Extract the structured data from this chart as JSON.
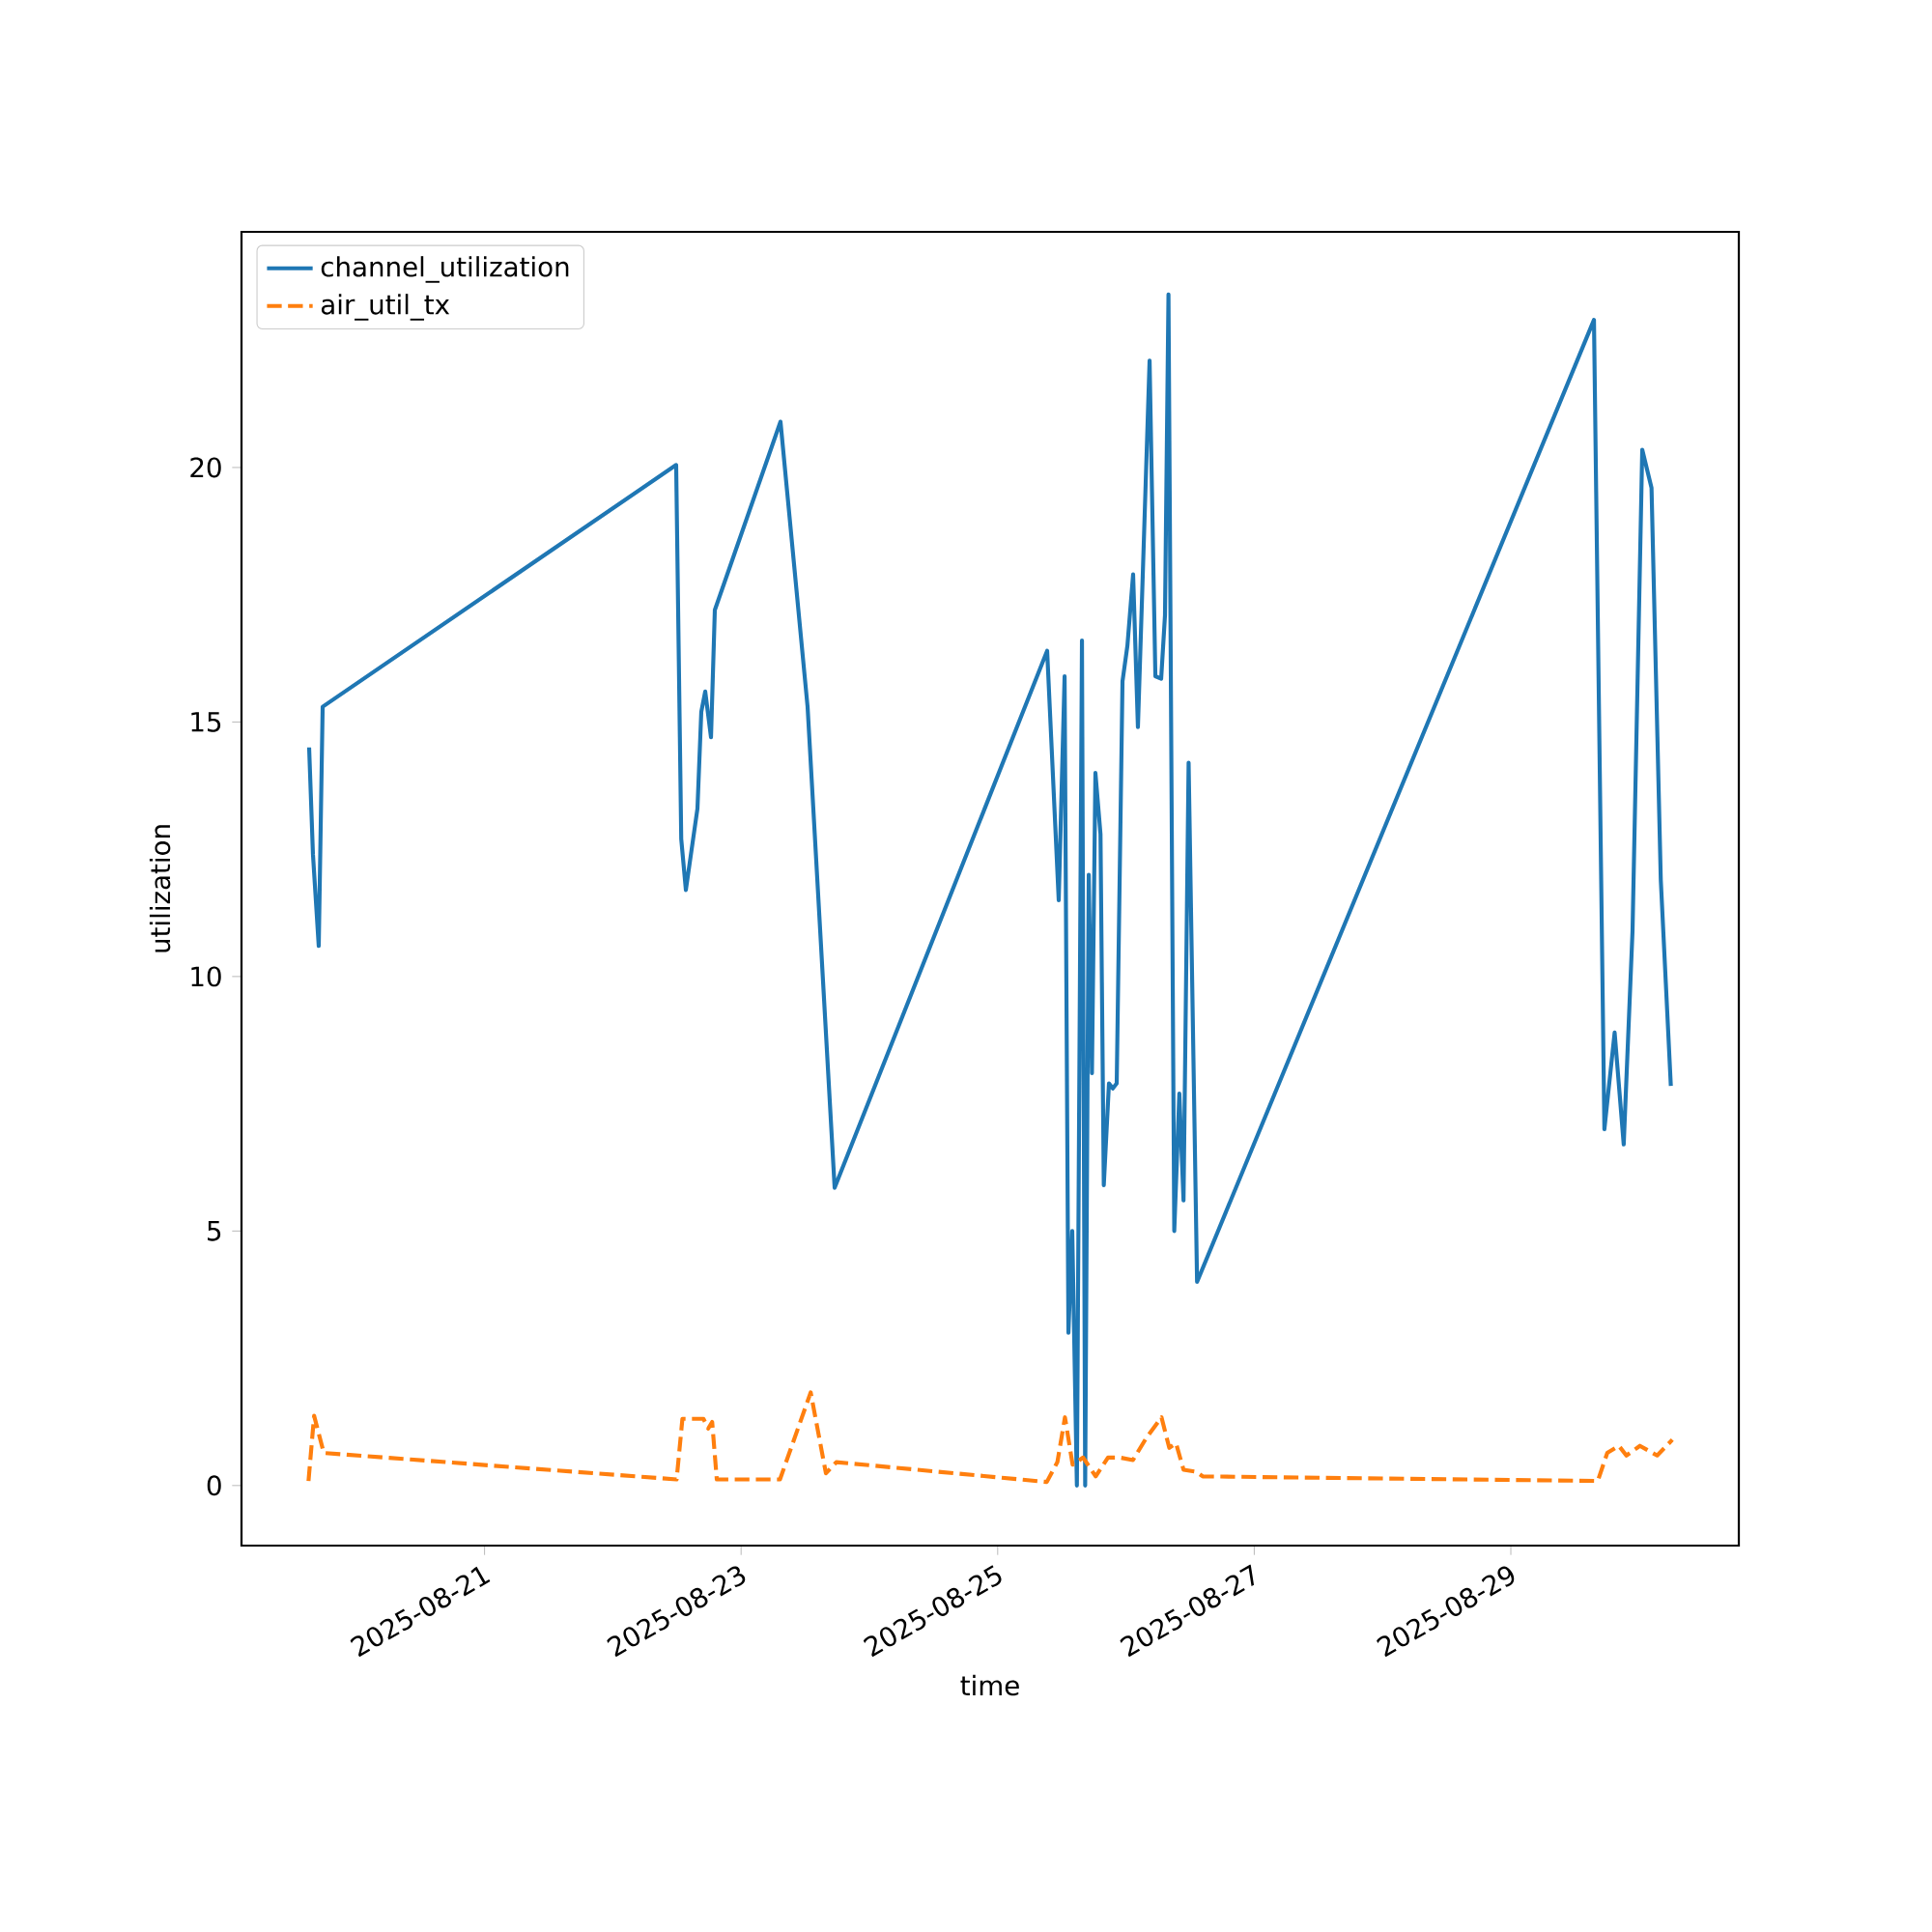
{
  "chart_data": {
    "type": "line",
    "xlabel": "time",
    "ylabel": "utilization",
    "legend": "top left",
    "xlim": [
      "2025-08-19T02:32",
      "2025-08-30T18:39"
    ],
    "ylim": [
      -1.18,
      24.63
    ],
    "xticks": [
      "2025-08-21",
      "2025-08-23",
      "2025-08-25",
      "2025-08-27",
      "2025-08-29"
    ],
    "yticks": [
      0,
      5,
      10,
      15,
      20
    ],
    "series": [
      {
        "name": "channel_utilization",
        "color": "#1f77b4",
        "line_style": "solid",
        "x": [
          "2025-08-19T15:11",
          "2025-08-19T15:54",
          "2025-08-19T16:59",
          "2025-08-19T17:43",
          "2025-08-22T11:51",
          "2025-08-22T12:48",
          "2025-08-22T13:40",
          "2025-08-22T15:50",
          "2025-08-22T16:33",
          "2025-08-22T17:17",
          "2025-08-22T18:22",
          "2025-08-22T19:05",
          "2025-08-23T07:22",
          "2025-08-23T12:26",
          "2025-08-23T17:30",
          "2025-08-25T09:15",
          "2025-08-25T11:25",
          "2025-08-25T12:31",
          "2025-08-25T13:14",
          "2025-08-25T13:57",
          "2025-08-25T14:49",
          "2025-08-25T15:46",
          "2025-08-25T16:22",
          "2025-08-25T17:02",
          "2025-08-25T17:38",
          "2025-08-25T18:17",
          "2025-08-25T19:14",
          "2025-08-25T19:51",
          "2025-08-25T20:49",
          "2025-08-25T21:32",
          "2025-08-25T22:16",
          "2025-08-25T23:21",
          "2025-08-26T00:16",
          "2025-08-26T01:20",
          "2025-08-26T02:14",
          "2025-08-26T04:25",
          "2025-08-26T05:30",
          "2025-08-26T06:35",
          "2025-08-26T07:18",
          "2025-08-26T07:57",
          "2025-08-26T09:02",
          "2025-08-26T09:59",
          "2025-08-26T10:46",
          "2025-08-26T11:43",
          "2025-08-26T13:18",
          "2025-08-29T15:33",
          "2025-08-29T17:30",
          "2025-08-29T19:25",
          "2025-08-29T21:07",
          "2025-08-29T22:46",
          "2025-08-30T00:35",
          "2025-08-30T02:19",
          "2025-08-30T04:03",
          "2025-08-30T05:56"
        ],
        "values": [
          14.5,
          12.4,
          10.6,
          15.3,
          20.05,
          12.7,
          11.7,
          13.3,
          15.2,
          15.6,
          14.7,
          17.2,
          20.9,
          15.3,
          5.85,
          16.4,
          11.5,
          15.9,
          3.0,
          5.0,
          0.0,
          16.6,
          0.0,
          12.0,
          8.1,
          14.0,
          12.8,
          5.9,
          7.9,
          7.8,
          7.9,
          15.8,
          16.5,
          17.9,
          14.9,
          22.1,
          15.9,
          15.85,
          17.1,
          23.4,
          5.0,
          7.7,
          5.6,
          14.2,
          4.0,
          22.9,
          7.0,
          8.9,
          6.7,
          10.9,
          20.35,
          19.6,
          11.9,
          7.85
        ]
      },
      {
        "name": "air_util_tx",
        "color": "#ff7f0e",
        "line_style": "dashed",
        "x": [
          "2025-08-19T15:04",
          "2025-08-19T16:07",
          "2025-08-19T17:56",
          "2025-08-22T11:56",
          "2025-08-22T13:01",
          "2025-08-22T16:57",
          "2025-08-22T17:51",
          "2025-08-22T18:35",
          "2025-08-22T19:27",
          "2025-08-23T07:16",
          "2025-08-23T13:01",
          "2025-08-23T15:52",
          "2025-08-23T17:49",
          "2025-08-25T09:11",
          "2025-08-25T11:10",
          "2025-08-25T12:35",
          "2025-08-25T14:01",
          "2025-08-25T15:59",
          "2025-08-25T18:20",
          "2025-08-25T20:38",
          "2025-08-25T22:49",
          "2025-08-26T01:18",
          "2025-08-26T03:47",
          "2025-08-26T06:39",
          "2025-08-26T08:06",
          "2025-08-26T09:22",
          "2025-08-26T10:46",
          "2025-08-26T13:05",
          "2025-08-26T14:21",
          "2025-08-29T16:16",
          "2025-08-29T18:02",
          "2025-08-29T20:13",
          "2025-08-29T21:37",
          "2025-08-30T00:09",
          "2025-08-30T03:22",
          "2025-08-30T06:13"
        ],
        "values": [
          0.09,
          1.37,
          0.64,
          0.12,
          1.31,
          1.31,
          1.12,
          1.25,
          0.12,
          0.12,
          1.83,
          0.24,
          0.46,
          0.07,
          0.46,
          1.34,
          0.41,
          0.55,
          0.18,
          0.55,
          0.55,
          0.5,
          0.93,
          1.34,
          0.74,
          0.83,
          0.31,
          0.27,
          0.18,
          0.09,
          0.64,
          0.78,
          0.59,
          0.78,
          0.59,
          0.9
        ]
      }
    ]
  }
}
